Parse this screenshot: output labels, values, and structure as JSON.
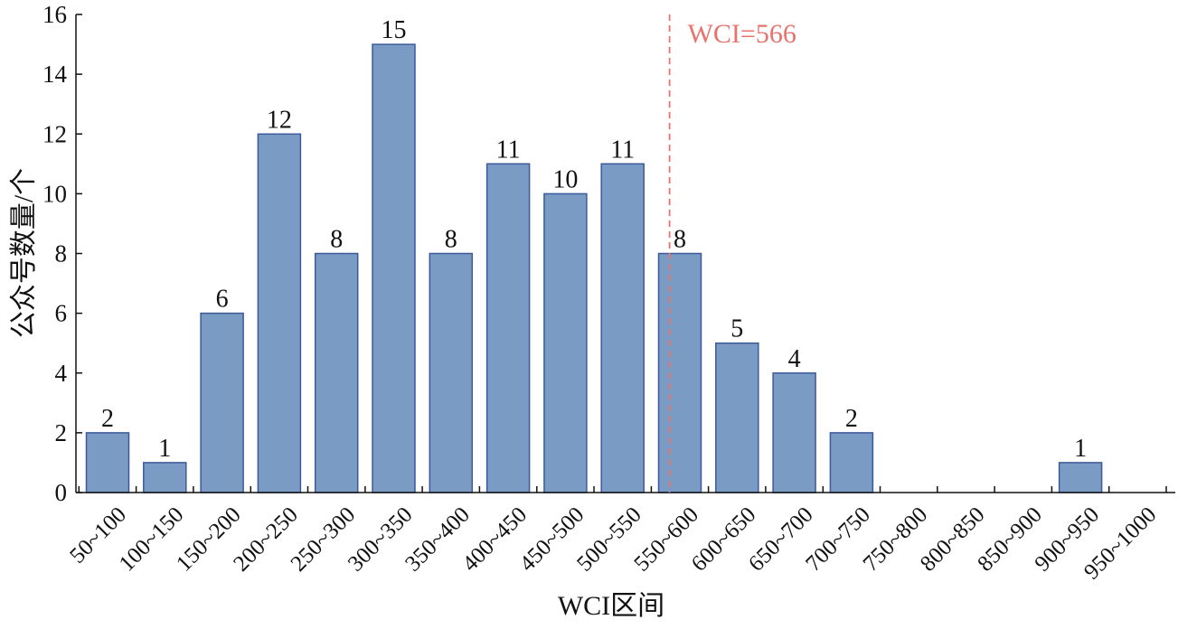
{
  "chart_data": {
    "type": "bar",
    "title": "",
    "xlabel": "WCI区间",
    "ylabel": "公众号数量/个",
    "ylim": [
      0,
      16
    ],
    "yticks": [
      0,
      2,
      4,
      6,
      8,
      10,
      12,
      14,
      16
    ],
    "grid": false,
    "categories": [
      "50~100",
      "100~150",
      "150~200",
      "200~250",
      "250~300",
      "300~350",
      "350~400",
      "400~450",
      "450~500",
      "500~550",
      "550~600",
      "600~650",
      "650~700",
      "700~750",
      "750~800",
      "800~850",
      "850~900",
      "900~950",
      "950~1000"
    ],
    "values": [
      2,
      1,
      6,
      12,
      8,
      15,
      8,
      11,
      10,
      11,
      8,
      5,
      4,
      2,
      0,
      0,
      0,
      1,
      0
    ],
    "data_labels_shown_for_nonzero": true,
    "bar_color": "#7a9bc3",
    "bar_edge_color": "#3c5a9a",
    "reference_line": {
      "label": "WCI=566",
      "x_value": 566,
      "color": "#e8736c",
      "style": "dashed"
    }
  }
}
